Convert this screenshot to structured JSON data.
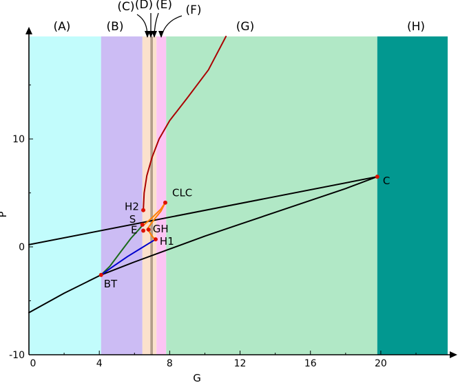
{
  "chart_data": {
    "type": "line",
    "title": "",
    "xlabel": "G",
    "ylabel": "P",
    "xlim": [
      0,
      23.8
    ],
    "ylim": [
      -10,
      19.5
    ],
    "x_ticks": [
      0,
      4,
      8,
      12,
      16,
      20
    ],
    "x_tick_labels": [
      "0",
      "4",
      "8",
      "12",
      "16",
      "20"
    ],
    "y_ticks": [
      -10,
      0,
      10
    ],
    "y_tick_labels": [
      "-10",
      "0",
      "10"
    ],
    "grid": false,
    "regions": [
      {
        "label": "(A)",
        "x_start": 0,
        "x_end": 4.1,
        "color": "#c2fcfc"
      },
      {
        "label": "(B)",
        "x_start": 4.1,
        "x_end": 6.45,
        "color": "#ccbcf4"
      },
      {
        "label": "(C)",
        "x_start": 6.45,
        "x_end": 6.9,
        "color": "#fbe1cc"
      },
      {
        "label": "(D)",
        "x_start": 6.9,
        "x_end": 7.05,
        "color": "#b39d8a"
      },
      {
        "label": "(E)",
        "x_start": 7.05,
        "x_end": 7.25,
        "color": "#fbe1cc"
      },
      {
        "label": "(F)",
        "x_start": 7.25,
        "x_end": 7.8,
        "color": "#fcc4f4"
      },
      {
        "label": "(G)",
        "x_start": 7.8,
        "x_end": 19.8,
        "color": "#b1e8c6"
      },
      {
        "label": "(H)",
        "x_start": 19.8,
        "x_end": 23.8,
        "color": "#029890"
      }
    ],
    "series": [
      {
        "color": "#000000",
        "x": [
          0,
          19.8
        ],
        "y": [
          0.2,
          6.5
        ]
      },
      {
        "color": "#000000",
        "x": [
          0,
          2,
          4.1,
          6,
          8,
          10,
          12,
          14,
          16,
          18,
          19.8
        ],
        "y": [
          -6.1,
          -4.3,
          -2.6,
          -1.4,
          -0.2,
          1,
          2.1,
          3.2,
          4.3,
          5.4,
          6.5
        ]
      },
      {
        "color": "#aa0000",
        "x": [
          6.5,
          6.55,
          6.7,
          7.0,
          7.4,
          8.0,
          9.0,
          10.2,
          11.2
        ],
        "y": [
          3.4,
          5.0,
          6.6,
          8.3,
          10.0,
          11.7,
          13.8,
          16.4,
          19.5
        ]
      },
      {
        "color": "#ff7f00",
        "x": [
          6.5,
          7.0,
          7.5,
          7.75
        ],
        "y": [
          2.0,
          2.7,
          3.5,
          4.1
        ]
      },
      {
        "color": "#ff7f00",
        "x": [
          6.7,
          7.1,
          7.5,
          7.75
        ],
        "y": [
          1.6,
          2.5,
          3.3,
          4.1
        ]
      },
      {
        "color": "#ff7f00",
        "x": [
          6.8,
          7.0,
          7.2
        ],
        "y": [
          1.5,
          1.0,
          0.6
        ]
      },
      {
        "color": "#1a6b1a",
        "x": [
          4.1,
          4.6,
          5.2,
          5.8,
          6.3,
          6.5
        ],
        "y": [
          -2.6,
          -1.8,
          -0.5,
          0.8,
          1.7,
          2.1
        ]
      },
      {
        "color": "#0000cc",
        "x": [
          4.1,
          4.8,
          5.6,
          6.4,
          7.0,
          7.2
        ],
        "y": [
          -2.6,
          -1.8,
          -0.9,
          -0.1,
          0.5,
          0.7
        ]
      }
    ],
    "points": [
      {
        "label": "BT",
        "x": 4.1,
        "y": -2.6
      },
      {
        "label": "H1",
        "x": 7.2,
        "y": 0.7
      },
      {
        "label": "H2",
        "x": 6.5,
        "y": 3.4
      },
      {
        "label": "CLC",
        "x": 7.75,
        "y": 4.1
      },
      {
        "label": "GH",
        "x": 6.8,
        "y": 1.6
      },
      {
        "label": "E",
        "x": 6.5,
        "y": 1.5
      },
      {
        "label": "S",
        "x": 6.45,
        "y": 2.05
      },
      {
        "label": "C",
        "x": 19.8,
        "y": 6.5
      }
    ],
    "point_color": "#dd1100"
  }
}
